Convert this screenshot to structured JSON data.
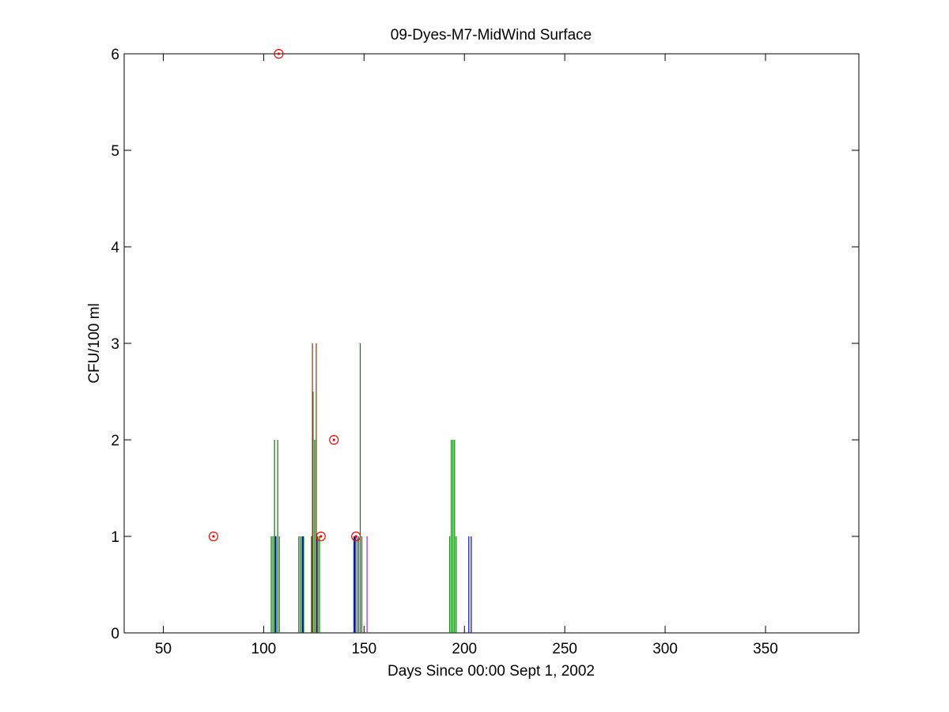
{
  "chart_data": {
    "type": "stem",
    "title": "09-Dyes-M7-MidWind Surface",
    "x_label": "Days Since 00:00 Sept 1, 2002",
    "y_label": "CFU/100 ml",
    "xlim": [
      30.5,
      396.5
    ],
    "xticks": [
      50,
      100,
      150,
      200,
      250,
      300,
      350
    ],
    "ylim": [
      0,
      6
    ],
    "yticks": [
      0,
      1,
      2,
      3,
      4,
      5,
      6
    ],
    "series": [
      {
        "style": "stem",
        "color": "#007f00",
        "x": [
          103.8,
          104.6,
          105.4,
          106.2,
          107.0,
          107.8,
          117.5,
          118.3,
          119.1,
          119.9,
          123.8,
          124.6,
          125.4,
          126.2,
          127.0,
          127.8,
          144.9,
          145.7,
          146.5,
          147.3,
          148.1,
          148.9,
          192.7,
          193.5,
          194.3,
          195.1,
          195.9
        ],
        "values": [
          1,
          1,
          2,
          1,
          2,
          1,
          1,
          1,
          1,
          1,
          1,
          2.5,
          2,
          2,
          1,
          1,
          1,
          1,
          1,
          1,
          3,
          1,
          1,
          2,
          2,
          2,
          1
        ]
      },
      {
        "style": "stem",
        "color": "#0000cc",
        "x": [
          105.8,
          119.5,
          126.5,
          145.3,
          202.2,
          203.4
        ],
        "values": [
          1,
          1,
          1,
          1,
          1,
          1
        ]
      },
      {
        "style": "stem",
        "color": "#9933cc",
        "x": [
          151.5
        ],
        "values": [
          1
        ]
      },
      {
        "style": "stem",
        "color": "#993300",
        "x": [
          124.3,
          126.2
        ],
        "values": [
          3,
          3
        ]
      },
      {
        "style": "marker",
        "color": "#ff0000",
        "x": [
          75,
          107.5,
          128.5,
          135,
          146
        ],
        "values": [
          1,
          6,
          1,
          2,
          1
        ]
      }
    ]
  }
}
